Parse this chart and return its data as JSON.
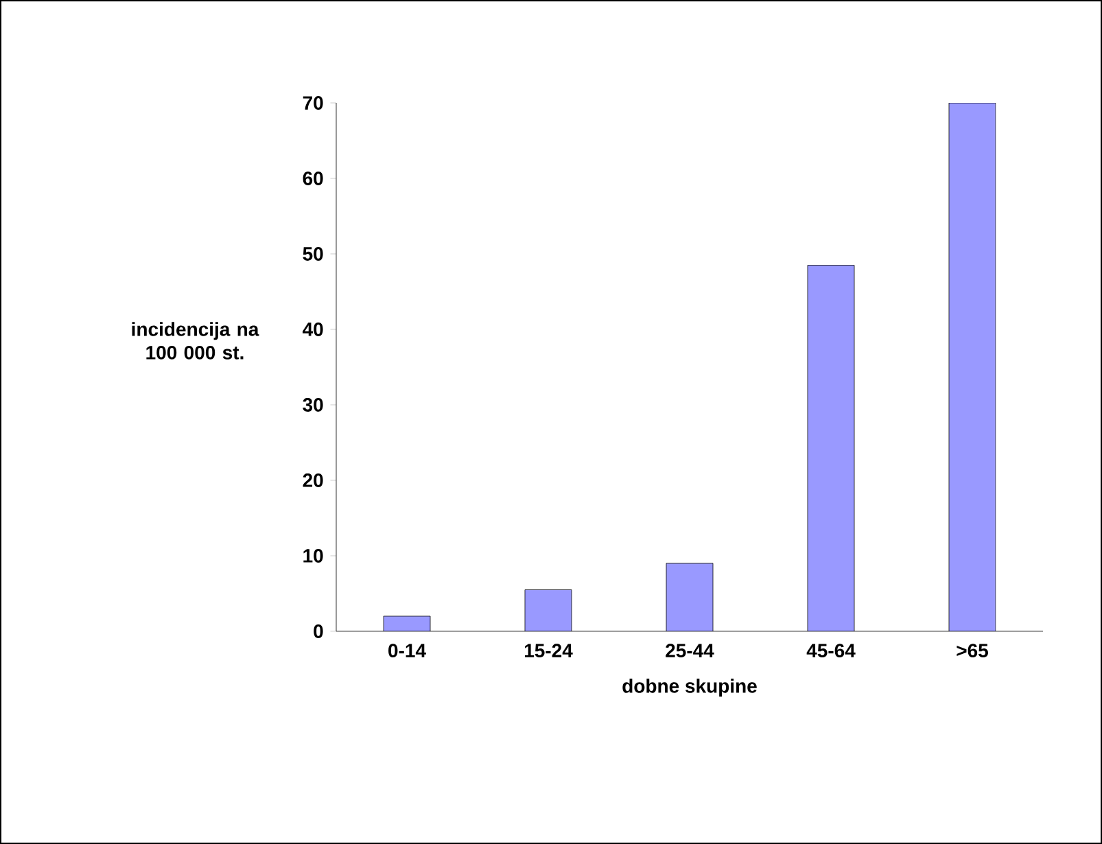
{
  "chart_data": {
    "type": "bar",
    "xlabel": "dobne skupine",
    "ylabel": "incidencija na 100 000 st.",
    "categories": [
      "0-14",
      "15-24",
      "25-44",
      "45-64",
      ">65"
    ],
    "values": [
      2,
      5.5,
      9,
      48.5,
      70
    ],
    "color": "#9999ff",
    "ylim": [
      0,
      70
    ],
    "yticks": [
      0,
      10,
      20,
      30,
      40,
      50,
      60,
      70
    ],
    "grid": false
  }
}
